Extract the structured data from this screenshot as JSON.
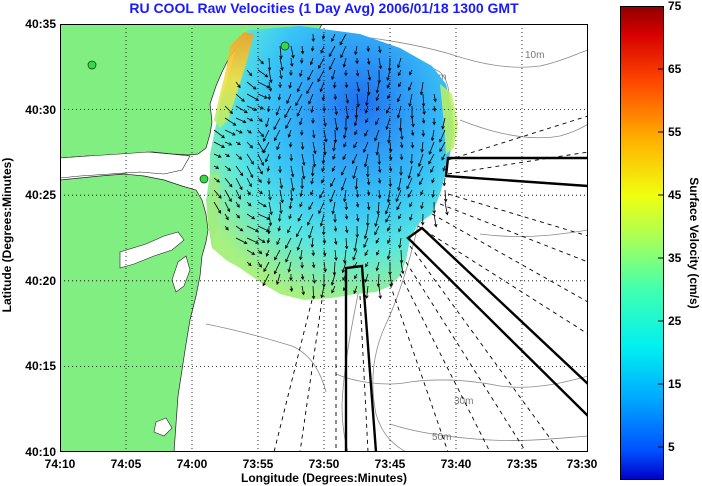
{
  "map": {
    "title": "RU COOL Raw Velocities (1 Day Avg) 2006/01/18 1300 GMT",
    "x_axis_label": "Longitude (Degrees:Minutes)",
    "y_axis_label": "Latitude (Degrees:Minutes)",
    "x_ticks": [
      "74:10",
      "74:05",
      "74:00",
      "73:55",
      "73:50",
      "73:45",
      "73:40",
      "73:35",
      "73:30"
    ],
    "y_ticks": [
      "40:35",
      "40:30",
      "40:25",
      "40:20",
      "40:15",
      "40:10"
    ],
    "depth_contour_labels": [
      "10m",
      "15m",
      "30m",
      "50m"
    ],
    "land_color": "#80ee80",
    "grid": true
  },
  "colorbar": {
    "label": "Surface Velocity (cm/s)",
    "ticks": [
      "75",
      "65",
      "55",
      "45",
      "35",
      "25",
      "15",
      "5"
    ],
    "range": [
      0,
      75
    ],
    "colormap": "jet"
  }
}
